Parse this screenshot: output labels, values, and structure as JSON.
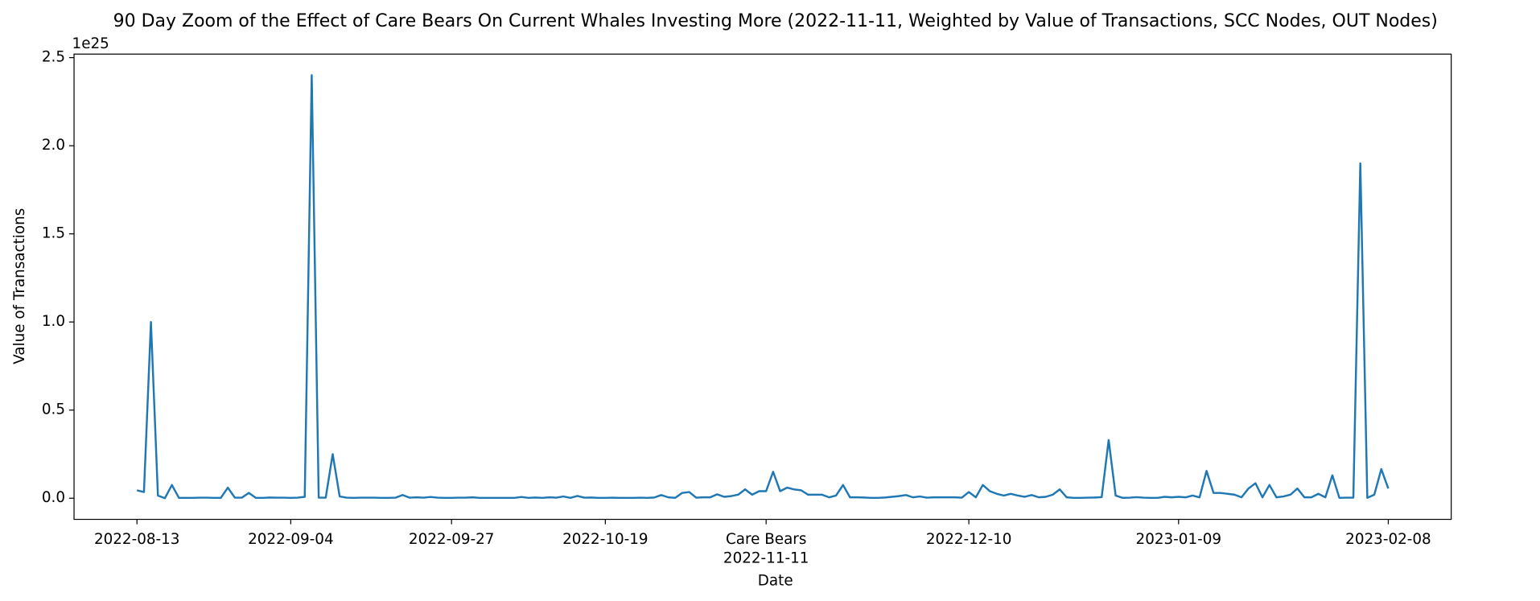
{
  "chart_data": {
    "type": "line",
    "title": "90 Day Zoom of the Effect of Care Bears On Current Whales Investing More (2022-11-11, Weighted by Value of Transactions, SCC Nodes, OUT Nodes)",
    "x_label": "Date",
    "y_label": "Value of Transactions",
    "y_offset_label": "1e25",
    "event_date": "2022-11-11",
    "event_label": "Care Bears",
    "xlim": [
      "2022-08-04",
      "2023-02-17"
    ],
    "xticks": [
      "2022-08-13",
      "2022-09-04",
      "2022-09-27",
      "2022-10-19",
      "2022-11-11",
      "2022-12-10",
      "2023-01-09",
      "2023-02-08"
    ],
    "ylim": [
      -0.12,
      2.52
    ],
    "yticks": [
      {
        "value": 0,
        "label": "0.0"
      },
      {
        "value": 0.5,
        "label": "0.5"
      },
      {
        "value": 1,
        "label": "1.0"
      },
      {
        "value": 1.5,
        "label": "1.5"
      },
      {
        "value": 2,
        "label": "2.0"
      },
      {
        "value": 2.5,
        "label": "2.5"
      }
    ],
    "x": [
      "2022-08-13",
      "2022-08-14",
      "2022-08-15",
      "2022-08-16",
      "2022-08-17",
      "2022-08-18",
      "2022-08-19",
      "2022-08-20",
      "2022-08-21",
      "2022-08-22",
      "2022-08-23",
      "2022-08-24",
      "2022-08-25",
      "2022-08-26",
      "2022-08-27",
      "2022-08-28",
      "2022-08-29",
      "2022-08-30",
      "2022-08-31",
      "2022-09-01",
      "2022-09-02",
      "2022-09-03",
      "2022-09-04",
      "2022-09-05",
      "2022-09-06",
      "2022-09-07",
      "2022-09-08",
      "2022-09-09",
      "2022-09-10",
      "2022-09-11",
      "2022-09-12",
      "2022-09-13",
      "2022-09-14",
      "2022-09-15",
      "2022-09-16",
      "2022-09-17",
      "2022-09-18",
      "2022-09-19",
      "2022-09-20",
      "2022-09-21",
      "2022-09-22",
      "2022-09-23",
      "2022-09-24",
      "2022-09-25",
      "2022-09-26",
      "2022-09-27",
      "2022-09-28",
      "2022-09-29",
      "2022-09-30",
      "2022-10-01",
      "2022-10-02",
      "2022-10-03",
      "2022-10-04",
      "2022-10-05",
      "2022-10-06",
      "2022-10-07",
      "2022-10-08",
      "2022-10-09",
      "2022-10-10",
      "2022-10-11",
      "2022-10-12",
      "2022-10-13",
      "2022-10-14",
      "2022-10-15",
      "2022-10-16",
      "2022-10-17",
      "2022-10-18",
      "2022-10-19",
      "2022-10-20",
      "2022-10-21",
      "2022-10-22",
      "2022-10-23",
      "2022-10-24",
      "2022-10-25",
      "2022-10-26",
      "2022-10-27",
      "2022-10-28",
      "2022-10-29",
      "2022-10-30",
      "2022-10-31",
      "2022-11-01",
      "2022-11-02",
      "2022-11-03",
      "2022-11-04",
      "2022-11-05",
      "2022-11-06",
      "2022-11-07",
      "2022-11-08",
      "2022-11-09",
      "2022-11-10",
      "2022-11-11",
      "2022-11-12",
      "2022-11-13",
      "2022-11-14",
      "2022-11-15",
      "2022-11-16",
      "2022-11-17",
      "2022-11-18",
      "2022-11-19",
      "2022-11-20",
      "2022-11-21",
      "2022-11-22",
      "2022-11-23",
      "2022-11-24",
      "2022-11-25",
      "2022-11-26",
      "2022-11-27",
      "2022-11-28",
      "2022-11-29",
      "2022-11-30",
      "2022-12-01",
      "2022-12-02",
      "2022-12-03",
      "2022-12-04",
      "2022-12-05",
      "2022-12-06",
      "2022-12-07",
      "2022-12-08",
      "2022-12-09",
      "2022-12-10",
      "2022-12-11",
      "2022-12-12",
      "2022-12-13",
      "2022-12-14",
      "2022-12-15",
      "2022-12-16",
      "2022-12-17",
      "2022-12-18",
      "2022-12-19",
      "2022-12-20",
      "2022-12-21",
      "2022-12-22",
      "2022-12-23",
      "2022-12-24",
      "2022-12-25",
      "2022-12-26",
      "2022-12-27",
      "2022-12-28",
      "2022-12-29",
      "2022-12-30",
      "2022-12-31",
      "2023-01-01",
      "2023-01-02",
      "2023-01-03",
      "2023-01-04",
      "2023-01-05",
      "2023-01-06",
      "2023-01-07",
      "2023-01-08",
      "2023-01-09",
      "2023-01-10",
      "2023-01-11",
      "2023-01-12",
      "2023-01-13",
      "2023-01-14",
      "2023-01-15",
      "2023-01-16",
      "2023-01-17",
      "2023-01-18",
      "2023-01-19",
      "2023-01-20",
      "2023-01-21",
      "2023-01-22",
      "2023-01-23",
      "2023-01-24",
      "2023-01-25",
      "2023-01-26",
      "2023-01-27",
      "2023-01-28",
      "2023-01-29",
      "2023-01-30",
      "2023-01-31",
      "2023-02-01",
      "2023-02-02",
      "2023-02-03",
      "2023-02-04",
      "2023-02-05",
      "2023-02-06",
      "2023-02-07",
      "2023-02-08"
    ],
    "series": [
      {
        "name": "Value of Transactions",
        "color": "#1f77b4",
        "values": [
          0.045,
          0.035,
          1.0,
          0.015,
          0.0,
          0.075,
          0.002,
          0.002,
          0.002,
          0.003,
          0.003,
          0.002,
          0.002,
          0.06,
          0.003,
          0.003,
          0.03,
          0.002,
          0.002,
          0.004,
          0.003,
          0.003,
          0.002,
          0.003,
          0.008,
          2.4,
          0.003,
          0.003,
          0.25,
          0.01,
          0.003,
          0.002,
          0.003,
          0.003,
          0.003,
          0.002,
          0.002,
          0.003,
          0.018,
          0.003,
          0.005,
          0.003,
          0.007,
          0.003,
          0.002,
          0.002,
          0.003,
          0.003,
          0.005,
          0.002,
          0.002,
          0.002,
          0.002,
          0.002,
          0.002,
          0.007,
          0.002,
          0.004,
          0.002,
          0.005,
          0.003,
          0.01,
          0.002,
          0.013,
          0.003,
          0.004,
          0.002,
          0.002,
          0.003,
          0.002,
          0.002,
          0.002,
          0.003,
          0.002,
          0.004,
          0.018,
          0.005,
          0.002,
          0.03,
          0.035,
          0.003,
          0.005,
          0.005,
          0.022,
          0.008,
          0.012,
          0.02,
          0.05,
          0.02,
          0.04,
          0.04,
          0.15,
          0.04,
          0.06,
          0.05,
          0.045,
          0.02,
          0.02,
          0.02,
          0.005,
          0.015,
          0.075,
          0.005,
          0.005,
          0.004,
          0.002,
          0.002,
          0.004,
          0.008,
          0.012,
          0.018,
          0.005,
          0.01,
          0.003,
          0.005,
          0.005,
          0.005,
          0.005,
          0.003,
          0.035,
          0.005,
          0.075,
          0.04,
          0.025,
          0.015,
          0.025,
          0.015,
          0.008,
          0.018,
          0.005,
          0.008,
          0.02,
          0.05,
          0.005,
          0.002,
          0.002,
          0.003,
          0.004,
          0.006,
          0.33,
          0.015,
          0.002,
          0.003,
          0.006,
          0.003,
          0.002,
          0.002,
          0.008,
          0.005,
          0.008,
          0.005,
          0.015,
          0.005,
          0.155,
          0.03,
          0.03,
          0.025,
          0.02,
          0.005,
          0.055,
          0.085,
          0.005,
          0.075,
          0.005,
          0.01,
          0.02,
          0.055,
          0.005,
          0.005,
          0.025,
          0.005,
          0.13,
          0.002,
          0.003,
          0.003,
          1.9,
          0.002,
          0.02,
          0.165,
          0.055
        ]
      }
    ]
  }
}
